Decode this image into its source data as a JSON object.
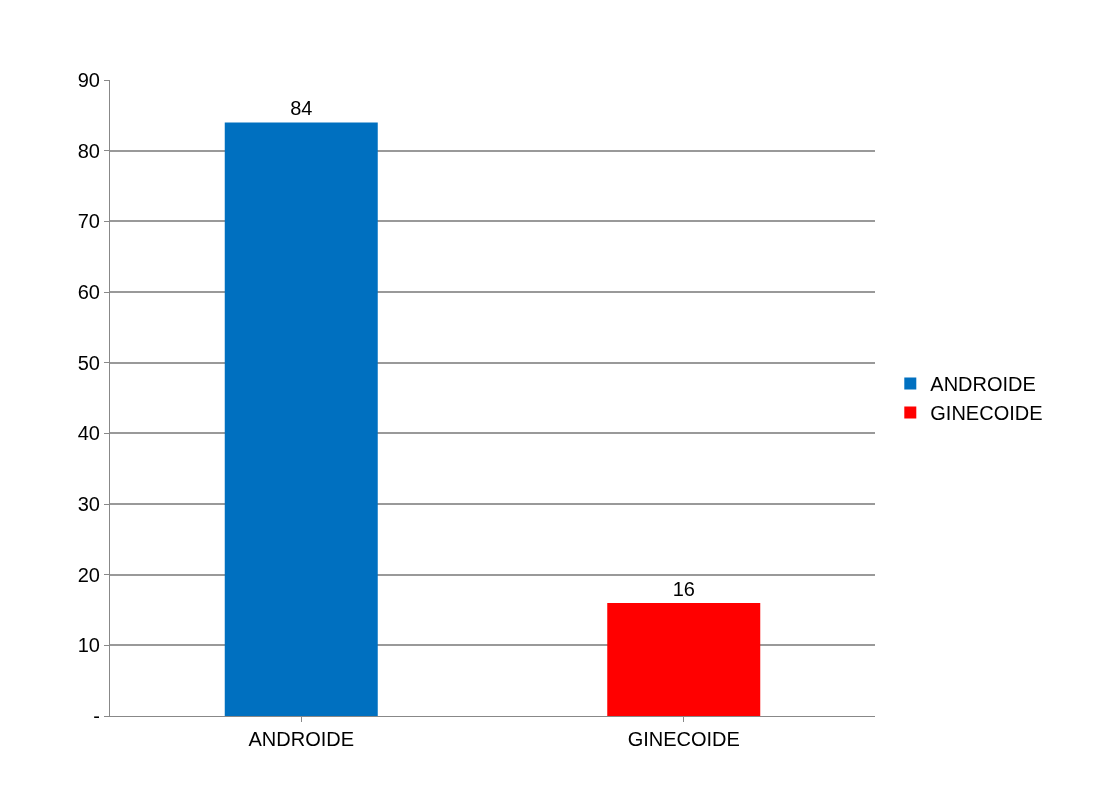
{
  "chart_data": {
    "type": "bar",
    "categories": [
      "ANDROIDE",
      "GINECOIDE"
    ],
    "series": [
      {
        "name": "ANDROIDE",
        "color": "#0070c0",
        "values": [
          84,
          null
        ]
      },
      {
        "name": "GINECOIDE",
        "color": "#ff0000",
        "values": [
          null,
          16
        ]
      }
    ],
    "ylim": [
      0,
      90
    ],
    "yticks": [
      {
        "value": 0,
        "label": "-"
      },
      10,
      20,
      30,
      40,
      50,
      60,
      70,
      80,
      90
    ],
    "grid": "y",
    "legend": "right",
    "data_labels": true
  }
}
